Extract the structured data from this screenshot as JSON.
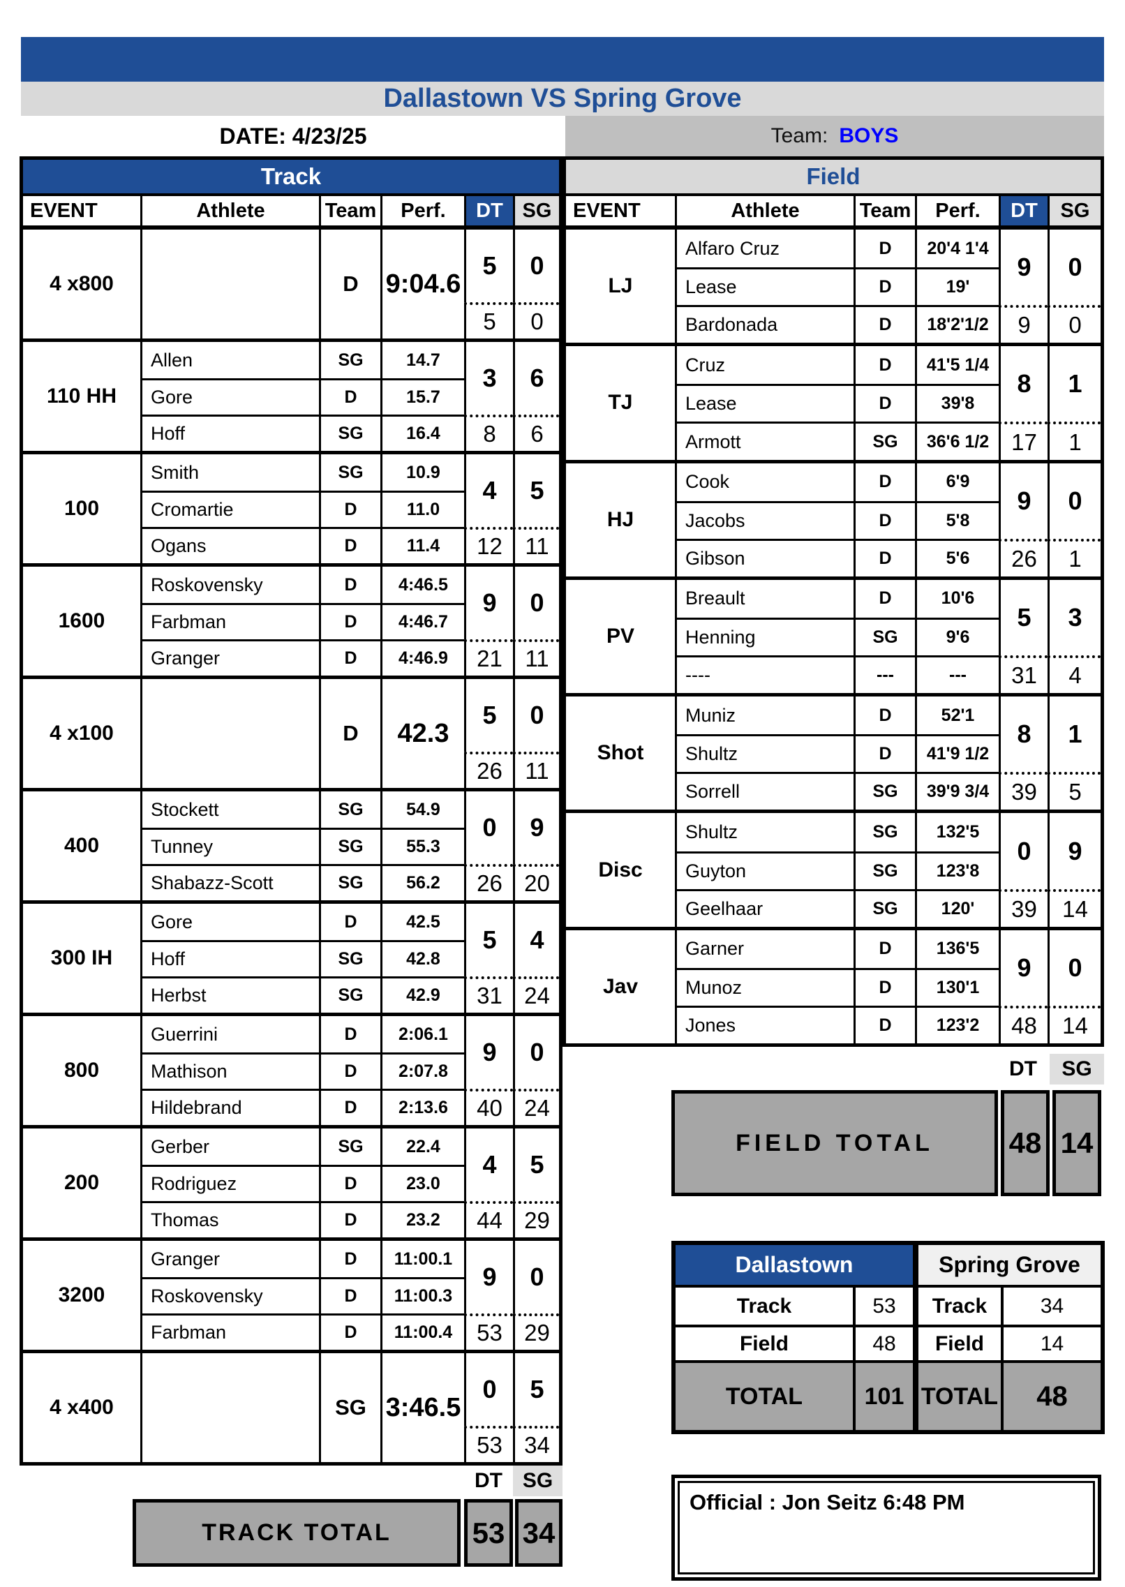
{
  "colors": {
    "blue": "#1F4E96",
    "title_gray": "#D9D9D9",
    "team_gray": "#BFBFBF",
    "sg_header": "#DFDFDF",
    "sgrove_header": "#F0F0F0",
    "total_gray": "#A6A6A6",
    "boys_blue": "#0000FF"
  },
  "meet": {
    "title": "Dallastown VS Spring Grove",
    "date_label": "DATE: 4/23/25",
    "team_label": "Team:",
    "team_value": "BOYS"
  },
  "columns": {
    "event": "EVENT",
    "athlete": "Athlete",
    "team": "Team",
    "perf": "Perf.",
    "dt": "DT",
    "sg": "SG"
  },
  "track": {
    "header": "Track",
    "total_label": "TRACK TOTAL",
    "total_dt": "53",
    "total_sg": "34",
    "events": [
      {
        "name": "4 x800",
        "relay": true,
        "team": "D",
        "perf": "9:04.6",
        "pts": [
          "5",
          "0"
        ],
        "cum": [
          "5",
          "0"
        ]
      },
      {
        "name": "110 HH",
        "rows": [
          {
            "a": "Allen",
            "t": "SG",
            "p": "14.7"
          },
          {
            "a": "Gore",
            "t": "D",
            "p": "15.7"
          },
          {
            "a": "Hoff",
            "t": "SG",
            "p": "16.4"
          }
        ],
        "pts": [
          "3",
          "6"
        ],
        "cum": [
          "8",
          "6"
        ]
      },
      {
        "name": "100",
        "rows": [
          {
            "a": "Smith",
            "t": "SG",
            "p": "10.9"
          },
          {
            "a": "Cromartie",
            "t": "D",
            "p": "11.0"
          },
          {
            "a": "Ogans",
            "t": "D",
            "p": "11.4"
          }
        ],
        "pts": [
          "4",
          "5"
        ],
        "cum": [
          "12",
          "11"
        ]
      },
      {
        "name": "1600",
        "rows": [
          {
            "a": "Roskovensky",
            "t": "D",
            "p": "4:46.5"
          },
          {
            "a": "Farbman",
            "t": "D",
            "p": "4:46.7"
          },
          {
            "a": "Granger",
            "t": "D",
            "p": "4:46.9"
          }
        ],
        "pts": [
          "9",
          "0"
        ],
        "cum": [
          "21",
          "11"
        ]
      },
      {
        "name": "4 x100",
        "relay": true,
        "team": "D",
        "perf": "42.3",
        "pts": [
          "5",
          "0"
        ],
        "cum": [
          "26",
          "11"
        ]
      },
      {
        "name": "400",
        "rows": [
          {
            "a": "Stockett",
            "t": "SG",
            "p": "54.9"
          },
          {
            "a": "Tunney",
            "t": "SG",
            "p": "55.3"
          },
          {
            "a": "Shabazz-Scott",
            "t": "SG",
            "p": "56.2"
          }
        ],
        "pts": [
          "0",
          "9"
        ],
        "cum": [
          "26",
          "20"
        ]
      },
      {
        "name": "300 IH",
        "rows": [
          {
            "a": "Gore",
            "t": "D",
            "p": "42.5"
          },
          {
            "a": "Hoff",
            "t": "SG",
            "p": "42.8"
          },
          {
            "a": "Herbst",
            "t": "SG",
            "p": "42.9"
          }
        ],
        "pts": [
          "5",
          "4"
        ],
        "cum": [
          "31",
          "24"
        ]
      },
      {
        "name": "800",
        "rows": [
          {
            "a": "Guerrini",
            "t": "D",
            "p": "2:06.1"
          },
          {
            "a": "Mathison",
            "t": "D",
            "p": "2:07.8"
          },
          {
            "a": "Hildebrand",
            "t": "D",
            "p": "2:13.6"
          }
        ],
        "pts": [
          "9",
          "0"
        ],
        "cum": [
          "40",
          "24"
        ]
      },
      {
        "name": "200",
        "rows": [
          {
            "a": "Gerber",
            "t": "SG",
            "p": "22.4"
          },
          {
            "a": "Rodriguez",
            "t": "D",
            "p": "23.0"
          },
          {
            "a": "Thomas",
            "t": "D",
            "p": "23.2"
          }
        ],
        "pts": [
          "4",
          "5"
        ],
        "cum": [
          "44",
          "29"
        ]
      },
      {
        "name": "3200",
        "rows": [
          {
            "a": "Granger",
            "t": "D",
            "p": "11:00.1"
          },
          {
            "a": "Roskovensky",
            "t": "D",
            "p": "11:00.3"
          },
          {
            "a": "Farbman",
            "t": "D",
            "p": "11:00.4"
          }
        ],
        "pts": [
          "9",
          "0"
        ],
        "cum": [
          "53",
          "29"
        ]
      },
      {
        "name": "4 x400",
        "relay": true,
        "team": "SG",
        "perf": "3:46.5",
        "pts": [
          "0",
          "5"
        ],
        "cum": [
          "53",
          "34"
        ]
      }
    ]
  },
  "field": {
    "header": "Field",
    "total_label": "FIELD TOTAL",
    "total_dt": "48",
    "total_sg": "14",
    "events": [
      {
        "name": "LJ",
        "rows": [
          {
            "a": "Alfaro Cruz",
            "t": "D",
            "p": "20'4 1'4"
          },
          {
            "a": "Lease",
            "t": "D",
            "p": "19'"
          },
          {
            "a": "Bardonada",
            "t": "D",
            "p": "18'2'1/2"
          }
        ],
        "pts": [
          "9",
          "0"
        ],
        "cum": [
          "9",
          "0"
        ]
      },
      {
        "name": "TJ",
        "rows": [
          {
            "a": "Cruz",
            "t": "D",
            "p": "41'5 1/4"
          },
          {
            "a": "Lease",
            "t": "D",
            "p": "39'8"
          },
          {
            "a": "Armott",
            "t": "SG",
            "p": "36'6 1/2"
          }
        ],
        "pts": [
          "8",
          "1"
        ],
        "cum": [
          "17",
          "1"
        ]
      },
      {
        "name": "HJ",
        "rows": [
          {
            "a": "Cook",
            "t": "D",
            "p": "6'9"
          },
          {
            "a": "Jacobs",
            "t": "D",
            "p": "5'8"
          },
          {
            "a": "Gibson",
            "t": "D",
            "p": "5'6"
          }
        ],
        "pts": [
          "9",
          "0"
        ],
        "cum": [
          "26",
          "1"
        ]
      },
      {
        "name": "PV",
        "rows": [
          {
            "a": "Breault",
            "t": "D",
            "p": "10'6"
          },
          {
            "a": "Henning",
            "t": "SG",
            "p": "9'6"
          },
          {
            "a": "----",
            "t": "---",
            "p": "---"
          }
        ],
        "pts": [
          "5",
          "3"
        ],
        "cum": [
          "31",
          "4"
        ]
      },
      {
        "name": "Shot",
        "rows": [
          {
            "a": "Muniz",
            "t": "D",
            "p": "52'1"
          },
          {
            "a": "Shultz",
            "t": "D",
            "p": "41'9 1/2"
          },
          {
            "a": "Sorrell",
            "t": "SG",
            "p": "39'9 3/4"
          }
        ],
        "pts": [
          "8",
          "1"
        ],
        "cum": [
          "39",
          "5"
        ]
      },
      {
        "name": "Disc",
        "rows": [
          {
            "a": "Shultz",
            "t": "SG",
            "p": "132'5"
          },
          {
            "a": "Guyton",
            "t": "SG",
            "p": "123'8"
          },
          {
            "a": "Geelhaar",
            "t": "SG",
            "p": "120'"
          }
        ],
        "pts": [
          "0",
          "9"
        ],
        "cum": [
          "39",
          "14"
        ]
      },
      {
        "name": "Jav",
        "rows": [
          {
            "a": "Garner",
            "t": "D",
            "p": "136'5"
          },
          {
            "a": "Munoz",
            "t": "D",
            "p": "130'1"
          },
          {
            "a": "Jones",
            "t": "D",
            "p": "123'2"
          }
        ],
        "pts": [
          "9",
          "0"
        ],
        "cum": [
          "48",
          "14"
        ]
      }
    ]
  },
  "summary": {
    "row_labels": {
      "track": "Track",
      "field": "Field",
      "total": "TOTAL"
    },
    "dallastown": {
      "name": "Dallastown",
      "track": "53",
      "field": "48",
      "total": "101"
    },
    "spring_grove": {
      "name": "Spring Grove",
      "track": "34",
      "field": "14",
      "total": "48"
    }
  },
  "official": {
    "text": "Official : Jon Seitz 6:48 PM"
  }
}
